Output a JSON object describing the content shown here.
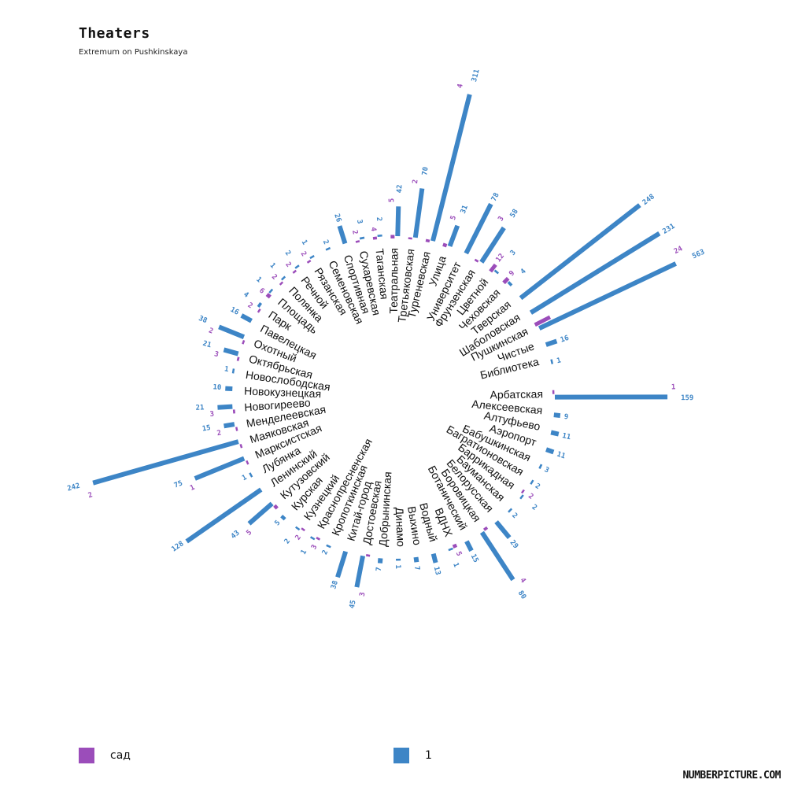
{
  "chart_data": {
    "type": "bar",
    "layout": "radial",
    "title": "Theaters",
    "subtitle": "Extremum on Pushkinskaya",
    "colors": {
      "sad": "#9b4dba",
      "one": "#3d85c6"
    },
    "legend": [
      {
        "label": "сад",
        "color": "#9b4dba"
      },
      {
        "label": "1",
        "color": "#3d85c6"
      }
    ],
    "categories": [
      "Арбатская",
      "Алексеевская",
      "Алтуфьево",
      "Аэропорт",
      "Бабушкинская",
      "Багратионовская",
      "Баррикадная",
      "Бауманская",
      "Белорусская",
      "Боровицкая",
      "Ботанический",
      "ВДНХ",
      "Водный",
      "Выхино",
      "Динамо",
      "Добрынинская",
      "Достоевская",
      "Китай-город",
      "Кропоткинская",
      "Краснопресненская",
      "Кузнецкий",
      "Курская",
      "Кутузовский",
      "Ленинский",
      "Лубянка",
      "Марксистская",
      "Маяковская",
      "Менделеевская",
      "Новогиреево",
      "Новокузнецкая",
      "Новослободская",
      "Октябрьская",
      "Охотный",
      "Павелецкая",
      "Парк",
      "Площадь",
      "Полянка",
      "Речной",
      "Рязанская",
      "Семеновская",
      "Спортивная",
      "Сухаревская",
      "Таганская",
      "Театральная",
      "Третьяковская",
      "Тургеневская",
      "Улица",
      "Университет",
      "Фрунзенская",
      "Цветной",
      "Чеховская",
      "Тверская",
      "Шаболовская",
      "Пушкинская",
      "Чистые",
      "Библиотека"
    ],
    "series": [
      {
        "name": "сад",
        "values": [
          1,
          null,
          null,
          null,
          null,
          null,
          2,
          null,
          null,
          4,
          null,
          5,
          null,
          null,
          null,
          null,
          3,
          null,
          null,
          3,
          2,
          null,
          5,
          null,
          null,
          1,
          2,
          2,
          3,
          null,
          null,
          3,
          2,
          null,
          2,
          6,
          2,
          2,
          2,
          null,
          null,
          2,
          4,
          5,
          2,
          4,
          5,
          null,
          3,
          12,
          9,
          null,
          null,
          24,
          null,
          null
        ]
      },
      {
        "name": "1",
        "values": [
          159,
          9,
          11,
          11,
          3,
          2,
          2,
          2,
          29,
          80,
          15,
          1,
          13,
          7,
          1,
          7,
          45,
          38,
          2,
          1,
          2,
          5,
          43,
          128,
          1,
          75,
          242,
          15,
          21,
          10,
          1,
          21,
          38,
          16,
          4,
          1,
          1,
          2,
          1,
          2,
          26,
          3,
          2,
          42,
          70,
          311,
          31,
          78,
          58,
          3,
          4,
          248,
          231,
          563,
          16,
          1
        ]
      }
    ]
  },
  "footer": {
    "brand": "NUMBERPICTURE.COM"
  }
}
